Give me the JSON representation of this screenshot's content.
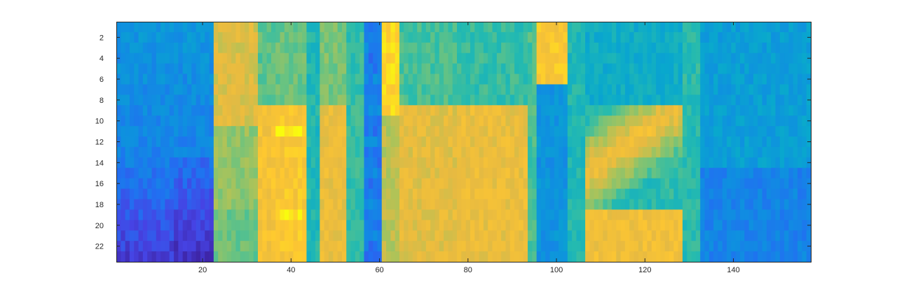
{
  "chart_data": {
    "type": "heatmap",
    "title": "",
    "xlabel": "",
    "ylabel": "",
    "colormap": "parula",
    "xlim": [
      0.5,
      157.5
    ],
    "ylim": [
      0.5,
      23.5
    ],
    "y_reversed": true,
    "x_ticks": [
      20,
      40,
      60,
      80,
      100,
      120,
      140
    ],
    "y_ticks": [
      2,
      4,
      6,
      8,
      10,
      12,
      14,
      16,
      18,
      20,
      22
    ],
    "x_tick_labels": [
      "20",
      "40",
      "60",
      "80",
      "100",
      "120",
      "140"
    ],
    "y_tick_labels": [
      "2",
      "4",
      "6",
      "8",
      "10",
      "12",
      "14",
      "16",
      "18",
      "20",
      "22"
    ],
    "n_cols": 157,
    "n_rows": 23,
    "value_range": [
      0,
      1
    ],
    "grid": false,
    "colors": {
      "frame": "#262626",
      "background": "#ffffff"
    }
  }
}
